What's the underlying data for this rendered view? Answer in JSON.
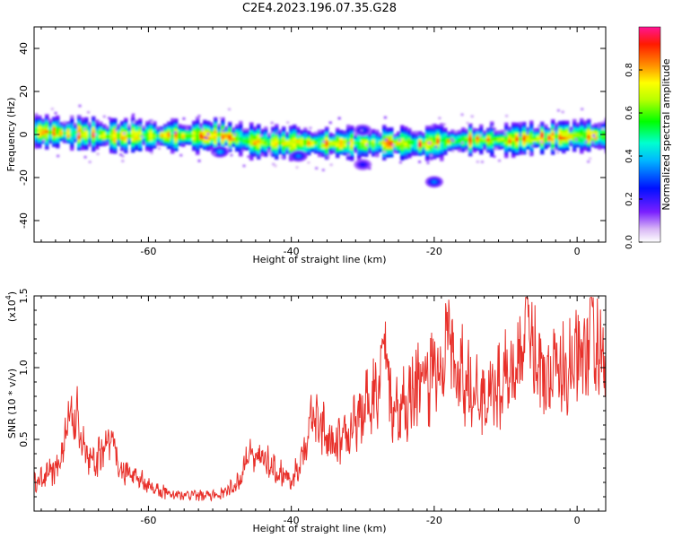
{
  "chart_data": [
    {
      "type": "heatmap",
      "title": "C2E4.2023.196.07.35.G28",
      "xlabel": "Height of straight line (km)",
      "ylabel": "Frequency (Hz)",
      "xlim": [
        -76,
        4
      ],
      "ylim": [
        -50,
        50
      ],
      "x_ticks": [
        -60,
        -40,
        -20,
        0
      ],
      "y_ticks": [
        40,
        20,
        0,
        -20,
        -40
      ],
      "colorbar": {
        "label": "Normalized spectral amplitude",
        "range": [
          0,
          1
        ],
        "ticks": [
          "0.0",
          "0.2",
          "0.4",
          "0.6",
          "0.8"
        ],
        "colormap": "rainbow"
      },
      "ridge": {
        "x": [
          -76,
          -70,
          -65,
          -60,
          -55,
          -50,
          -45,
          -40,
          -35,
          -30,
          -25,
          -22,
          -20,
          -15,
          -10,
          -5,
          0,
          4
        ],
        "freq": [
          2,
          1,
          0,
          0,
          0,
          0,
          -3,
          -3.5,
          -3.5,
          -3.5,
          -3.5,
          -4,
          -3,
          -2,
          -2,
          -1,
          0,
          0
        ]
      },
      "blobs": [
        {
          "x": -50,
          "y": -8,
          "amp": 0.35
        },
        {
          "x": -39,
          "y": -10,
          "amp": 0.3
        },
        {
          "x": -30,
          "y": 2,
          "amp": 0.25
        },
        {
          "x": -30,
          "y": -14,
          "amp": 0.2
        },
        {
          "x": -20,
          "y": -22,
          "amp": 0.3
        }
      ]
    },
    {
      "type": "line",
      "xlabel": "Height of straight line (km)",
      "ylabel": "SNR (10 * v/v)",
      "exponent_label": "(x10",
      "exponent_power": "4",
      "exponent_close": ")",
      "xlim": [
        -76,
        4
      ],
      "ylim": [
        0,
        1.5
      ],
      "x_ticks": [
        -60,
        -40,
        -20,
        0
      ],
      "y_ticks": [
        "0.5",
        "1.0",
        "1.5"
      ],
      "color": "#e8302a",
      "envelope": {
        "x": [
          -76,
          -73,
          -70,
          -68,
          -66,
          -64,
          -62,
          -60,
          -58,
          -56,
          -54,
          -52,
          -50,
          -48,
          -46,
          -44,
          -42,
          -40,
          -38,
          -36,
          -34,
          -32,
          -30,
          -28,
          -26,
          -24,
          -22,
          -20,
          -18,
          -16,
          -14,
          -12,
          -10,
          -8,
          -6,
          -4,
          -2,
          0,
          2,
          4
        ],
        "y": [
          0.2,
          0.3,
          0.62,
          0.35,
          0.45,
          0.3,
          0.25,
          0.18,
          0.14,
          0.12,
          0.12,
          0.11,
          0.12,
          0.18,
          0.3,
          0.4,
          0.3,
          0.2,
          0.45,
          0.6,
          0.45,
          0.55,
          0.7,
          0.9,
          0.72,
          0.75,
          0.95,
          1.0,
          0.9,
          1.0,
          0.8,
          0.85,
          0.95,
          1.05,
          1.1,
          1.0,
          0.95,
          1.05,
          1.15,
          1.1
        ]
      },
      "peaks": [
        {
          "x": -71,
          "y": 0.75
        },
        {
          "x": -65,
          "y": 0.52
        },
        {
          "x": -46,
          "y": 0.42
        },
        {
          "x": -37,
          "y": 0.7
        },
        {
          "x": -27,
          "y": 1.3
        },
        {
          "x": -18,
          "y": 1.35
        },
        {
          "x": -7,
          "y": 1.5
        },
        {
          "x": 2,
          "y": 1.32
        }
      ]
    }
  ]
}
